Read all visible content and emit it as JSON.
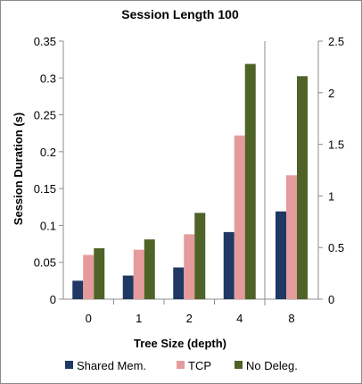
{
  "chart_data": {
    "type": "bar",
    "title": "Session Length 100",
    "xlabel": "Tree Size (depth)",
    "ylabel": "Session Duration (s)",
    "panels": [
      {
        "axis": "left",
        "categories": [
          "0",
          "1",
          "2",
          "4"
        ],
        "ylim": [
          0,
          0.35
        ],
        "yticks": [
          "0",
          "0.05",
          "0.1",
          "0.15",
          "0.2",
          "0.25",
          "0.3",
          "0.35"
        ],
        "series": [
          {
            "name": "Shared Mem.",
            "values": [
              0.025,
              0.032,
              0.043,
              0.091
            ]
          },
          {
            "name": "TCP",
            "values": [
              0.06,
              0.067,
              0.088,
              0.222
            ]
          },
          {
            "name": "No Deleg.",
            "values": [
              0.069,
              0.081,
              0.117,
              0.319
            ]
          }
        ]
      },
      {
        "axis": "right",
        "categories": [
          "8"
        ],
        "ylim": [
          0,
          2.5
        ],
        "yticks": [
          "0",
          "0.5",
          "1",
          "1.5",
          "2",
          "2.5"
        ],
        "series": [
          {
            "name": "Shared Mem.",
            "values": [
              0.85
            ]
          },
          {
            "name": "TCP",
            "values": [
              1.2
            ]
          },
          {
            "name": "No Deleg.",
            "values": [
              2.16
            ]
          }
        ]
      }
    ],
    "grid": false,
    "legend_position": "bottom",
    "colors": {
      "Shared Mem.": "#1f3864",
      "TCP": "#e59b9b",
      "No Deleg.": "#4f6228",
      "axis": "#8c8c8c"
    }
  }
}
